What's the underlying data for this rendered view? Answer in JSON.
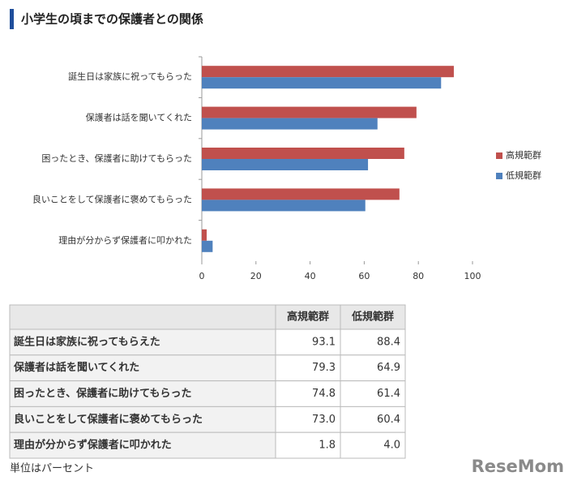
{
  "header": {
    "title": "小学生の頃までの保護者との関係"
  },
  "chart_data": {
    "type": "hbar",
    "categories": [
      "誕生日は家族に祝ってもらった",
      "保護者は話を聞いてくれた",
      "困ったとき、保護者に助けてもらった",
      "良いことをして保護者に褒めてもらった",
      "理由が分からず保護者に叩かれた"
    ],
    "series": [
      {
        "name": "高規範群",
        "color": "#c0504d",
        "values": [
          93.1,
          79.3,
          74.8,
          73.0,
          1.8
        ]
      },
      {
        "name": "低規範群",
        "color": "#4f81bd",
        "values": [
          88.4,
          64.9,
          61.4,
          60.4,
          4.0
        ]
      }
    ],
    "xlim": [
      0,
      100
    ],
    "xticks": [
      0,
      20,
      40,
      60,
      80,
      100
    ],
    "grid": false,
    "legend": "right"
  },
  "table": {
    "header": [
      "高規範群",
      "低規範群"
    ],
    "rows": [
      [
        "誕生日は家族に祝ってもらえた",
        "93.1",
        "88.4"
      ],
      [
        "保護者は話を聞いてくれた",
        "79.3",
        "64.9"
      ],
      [
        "困ったとき、保護者に助けてもらった",
        "74.8",
        "61.4"
      ],
      [
        "良いことをして保護者に褒めてもらった",
        "73.0",
        "60.4"
      ],
      [
        "理由が分からず保護者に叩かれた",
        "1.8",
        "4.0"
      ]
    ]
  },
  "note": "単位はパーセント",
  "logo": "ReseMom"
}
